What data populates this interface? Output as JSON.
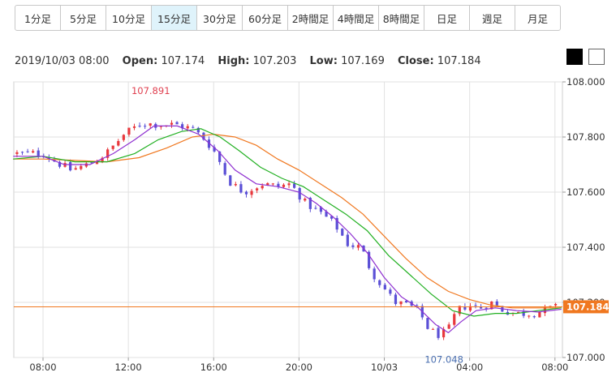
{
  "timeframes": {
    "active_index": 3,
    "items": [
      "1分足",
      "5分足",
      "10分足",
      "15分足",
      "30分足",
      "60分足",
      "2時間足",
      "4時間足",
      "8時間足",
      "日足",
      "週足",
      "月足"
    ]
  },
  "ohlc": {
    "datetime": "2019/10/03 08:00",
    "open_label": "Open:",
    "open": "107.174",
    "high_label": "High:",
    "high": "107.203",
    "low_label": "Low:",
    "low": "107.169",
    "close_label": "Close:",
    "close": "107.184"
  },
  "colors": {
    "up": "#e8383d",
    "down": "#5b50d6",
    "ma_short": "#8e2fd0",
    "ma_mid": "#22b022",
    "ma_long": "#f07820",
    "price_line": "#f07820",
    "grid": "#e2e2e2"
  },
  "chart_data": {
    "type": "candlestick",
    "y_axis": {
      "min": 107.0,
      "max": 108.0,
      "ticks": [
        "107.000",
        "107.200",
        "107.400",
        "107.600",
        "107.800",
        "108.000"
      ],
      "position": "right"
    },
    "x_axis": {
      "tick_labels": [
        "08:00",
        "12:00",
        "16:00",
        "20:00",
        "10/03",
        "04:00",
        "08:00"
      ],
      "tick_hours": [
        8,
        12,
        16,
        20,
        24,
        28,
        32
      ]
    },
    "bar_interval_hours": 0.25,
    "current_price": "107.184",
    "annotations": [
      {
        "text": "107.891",
        "hour": 13.05,
        "value": 107.891,
        "kind": "high"
      },
      {
        "text": "107.048",
        "hour": 26.8,
        "value": 107.048,
        "kind": "low"
      }
    ],
    "close_path": [
      [
        6.6,
        107.74
      ],
      [
        8.0,
        107.74
      ],
      [
        8.6,
        107.71
      ],
      [
        9.3,
        107.68
      ],
      [
        10.1,
        107.7
      ],
      [
        10.6,
        107.72
      ],
      [
        11.1,
        107.75
      ],
      [
        11.8,
        107.81
      ],
      [
        12.6,
        107.85
      ],
      [
        13.4,
        107.845
      ],
      [
        14.2,
        107.845
      ],
      [
        15.0,
        107.83
      ],
      [
        15.6,
        107.79
      ],
      [
        16.1,
        107.74
      ],
      [
        16.7,
        107.64
      ],
      [
        17.4,
        107.6
      ],
      [
        18.3,
        107.63
      ],
      [
        19.0,
        107.62
      ],
      [
        19.6,
        107.63
      ],
      [
        20.3,
        107.56
      ],
      [
        21.1,
        107.52
      ],
      [
        21.7,
        107.48
      ],
      [
        22.3,
        107.41
      ],
      [
        22.9,
        107.4
      ],
      [
        23.4,
        107.31
      ],
      [
        23.9,
        107.26
      ],
      [
        24.5,
        107.2
      ],
      [
        25.1,
        107.19
      ],
      [
        25.6,
        107.17
      ],
      [
        26.1,
        107.1
      ],
      [
        26.6,
        107.08
      ],
      [
        27.0,
        107.1
      ],
      [
        27.4,
        107.17
      ],
      [
        27.9,
        107.19
      ],
      [
        28.5,
        107.18
      ],
      [
        29.0,
        107.2
      ],
      [
        29.6,
        107.17
      ],
      [
        30.2,
        107.16
      ],
      [
        31.0,
        107.16
      ],
      [
        31.6,
        107.175
      ],
      [
        32.2,
        107.184
      ]
    ],
    "ma_short_path": [
      [
        6.6,
        107.73
      ],
      [
        8.0,
        107.73
      ],
      [
        9.0,
        107.7
      ],
      [
        10.2,
        107.7
      ],
      [
        11.3,
        107.74
      ],
      [
        12.3,
        107.79
      ],
      [
        13.2,
        107.84
      ],
      [
        14.3,
        107.84
      ],
      [
        15.3,
        107.81
      ],
      [
        16.2,
        107.75
      ],
      [
        17.0,
        107.68
      ],
      [
        18.0,
        107.63
      ],
      [
        19.0,
        107.62
      ],
      [
        20.0,
        107.6
      ],
      [
        20.8,
        107.56
      ],
      [
        21.6,
        107.51
      ],
      [
        22.4,
        107.45
      ],
      [
        23.2,
        107.38
      ],
      [
        24.0,
        107.29
      ],
      [
        24.8,
        107.22
      ],
      [
        25.6,
        107.18
      ],
      [
        26.4,
        107.12
      ],
      [
        27.0,
        107.09
      ],
      [
        27.6,
        107.13
      ],
      [
        28.3,
        107.17
      ],
      [
        29.2,
        107.18
      ],
      [
        30.2,
        107.17
      ],
      [
        31.2,
        107.165
      ],
      [
        32.3,
        107.175
      ]
    ],
    "ma_mid_path": [
      [
        6.6,
        107.72
      ],
      [
        8.0,
        107.73
      ],
      [
        9.5,
        107.71
      ],
      [
        11.0,
        107.71
      ],
      [
        12.3,
        107.74
      ],
      [
        13.4,
        107.79
      ],
      [
        14.5,
        107.82
      ],
      [
        15.4,
        107.83
      ],
      [
        16.3,
        107.8
      ],
      [
        17.2,
        107.75
      ],
      [
        18.2,
        107.69
      ],
      [
        19.2,
        107.65
      ],
      [
        20.2,
        107.62
      ],
      [
        21.2,
        107.57
      ],
      [
        22.2,
        107.52
      ],
      [
        23.2,
        107.46
      ],
      [
        24.2,
        107.37
      ],
      [
        25.2,
        107.3
      ],
      [
        26.2,
        107.23
      ],
      [
        27.2,
        107.17
      ],
      [
        28.2,
        107.15
      ],
      [
        29.2,
        107.16
      ],
      [
        30.2,
        107.16
      ],
      [
        31.2,
        107.17
      ],
      [
        32.3,
        107.18
      ]
    ],
    "ma_long_path": [
      [
        6.6,
        107.72
      ],
      [
        8.0,
        107.72
      ],
      [
        9.5,
        107.715
      ],
      [
        11.0,
        107.71
      ],
      [
        12.5,
        107.725
      ],
      [
        13.8,
        107.76
      ],
      [
        15.0,
        107.8
      ],
      [
        16.0,
        107.81
      ],
      [
        17.0,
        107.8
      ],
      [
        18.0,
        107.77
      ],
      [
        19.0,
        107.72
      ],
      [
        20.0,
        107.68
      ],
      [
        21.0,
        107.63
      ],
      [
        22.0,
        107.58
      ],
      [
        23.0,
        107.52
      ],
      [
        24.0,
        107.44
      ],
      [
        25.0,
        107.36
      ],
      [
        26.0,
        107.29
      ],
      [
        27.0,
        107.24
      ],
      [
        28.0,
        107.21
      ],
      [
        29.0,
        107.19
      ],
      [
        30.0,
        107.18
      ],
      [
        31.0,
        107.18
      ],
      [
        32.3,
        107.18
      ]
    ]
  }
}
